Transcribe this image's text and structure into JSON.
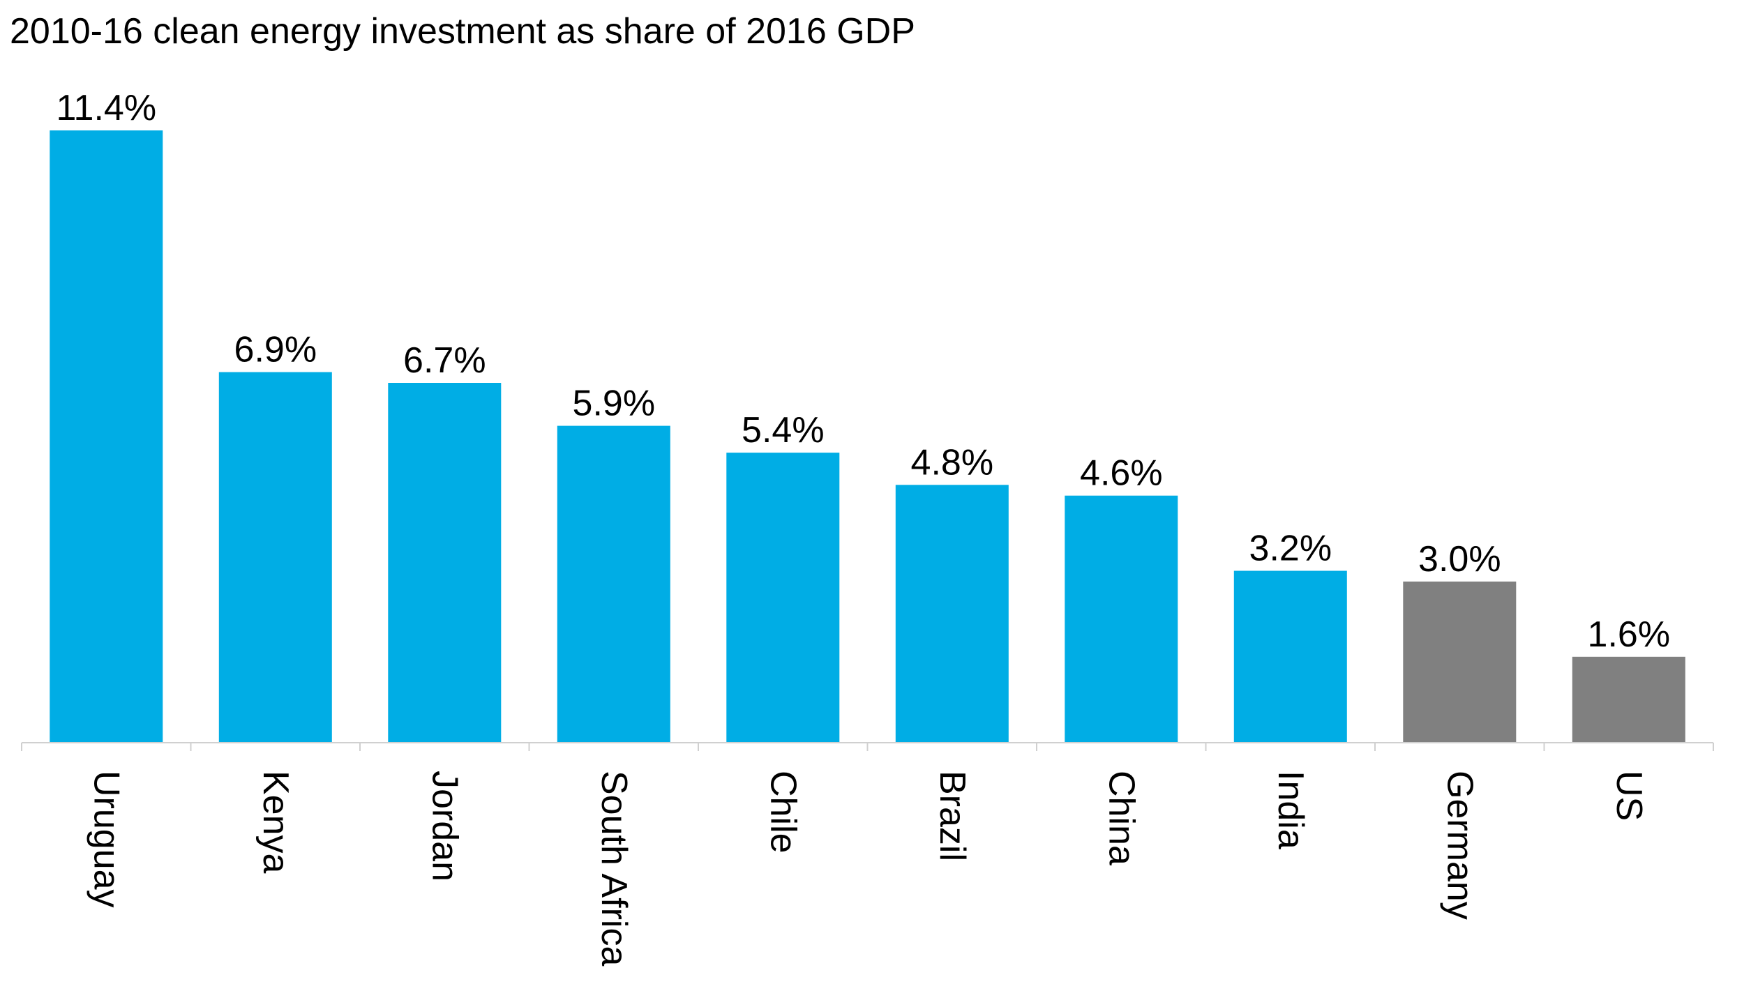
{
  "chart_data": {
    "type": "bar",
    "title": "2010-16 clean energy investment as share of 2016 GDP",
    "xlabel": "",
    "ylabel": "",
    "categories": [
      "Uruguay",
      "Kenya",
      "Jordan",
      "South Africa",
      "Chile",
      "Brazil",
      "China",
      "India",
      "Germany",
      "US"
    ],
    "values": [
      11.4,
      6.9,
      6.7,
      5.9,
      5.4,
      4.8,
      4.6,
      3.2,
      3.0,
      1.6
    ],
    "value_labels": [
      "11.4%",
      "6.9%",
      "6.7%",
      "5.9%",
      "5.4%",
      "4.8%",
      "4.6%",
      "3.2%",
      "3.0%",
      "1.6%"
    ],
    "bar_colors": [
      "#00ADE5",
      "#00ADE5",
      "#00ADE5",
      "#00ADE5",
      "#00ADE5",
      "#00ADE5",
      "#00ADE5",
      "#00ADE5",
      "#808080",
      "#808080"
    ],
    "ylim": [
      0,
      11.4
    ],
    "grid": false,
    "legend": "none",
    "category_label_orientation": "rotated-vertical"
  },
  "colors": {
    "highlight": "#00ADE5",
    "comparison": "#808080",
    "axis": "#D0D0D0"
  }
}
